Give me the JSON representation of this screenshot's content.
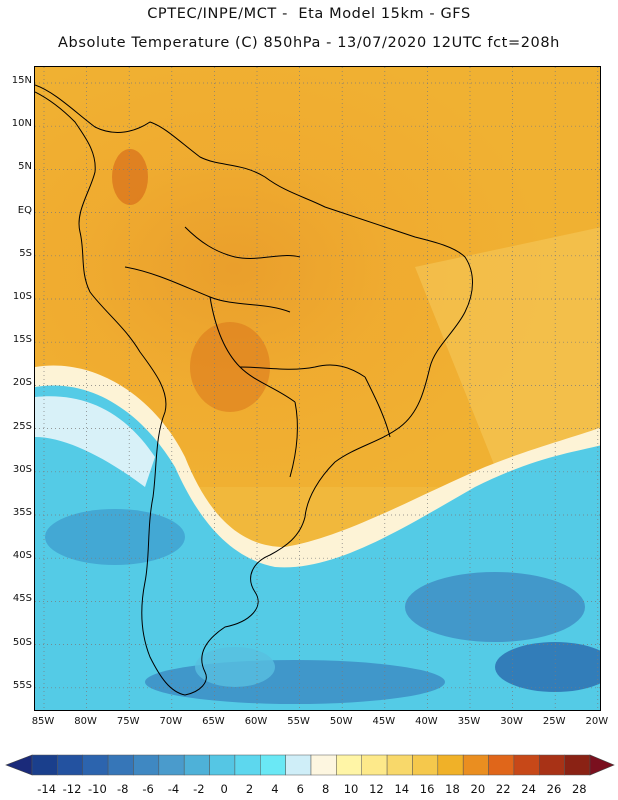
{
  "header": {
    "line1": "CPTEC/INPE/MCT -  Eta Model 15km - GFS",
    "line2": "Absolute Temperature (C) 850hPa - 13/07/2020 12UTC fct=208h"
  },
  "map": {
    "lat_labels": [
      "15N",
      "10N",
      "5N",
      "EQ",
      "5S",
      "10S",
      "15S",
      "20S",
      "25S",
      "30S",
      "35S",
      "40S",
      "45S",
      "50S",
      "55S"
    ],
    "lon_labels": [
      "85W",
      "80W",
      "75W",
      "70W",
      "65W",
      "60W",
      "55W",
      "50W",
      "45W",
      "40W",
      "35W",
      "30W",
      "25W",
      "20W"
    ],
    "grid": "dotted",
    "region": "South America"
  },
  "colorbar": {
    "labels": [
      "-14",
      "-12",
      "-10",
      "-8",
      "-6",
      "-4",
      "-2",
      "0",
      "2",
      "4",
      "6",
      "8",
      "10",
      "12",
      "14",
      "16",
      "18",
      "20",
      "22",
      "24",
      "26",
      "28"
    ],
    "colors": [
      "#1a3f8c",
      "#2352a0",
      "#2c64ae",
      "#3676b8",
      "#3f88c2",
      "#4a9bcc",
      "#4eb1d8",
      "#55c6e4",
      "#5dd7ee",
      "#6ae8f5",
      "#cfeef8",
      "#fdf6e0",
      "#fff5a6",
      "#fde98a",
      "#f8d86a",
      "#f5c84c",
      "#f0b128",
      "#ea8e20",
      "#e0661a",
      "#c74818",
      "#a83216",
      "#8a2214"
    ],
    "low_arrow_color": "#1a2a7a",
    "high_arrow_color": "#7a0f1e"
  }
}
